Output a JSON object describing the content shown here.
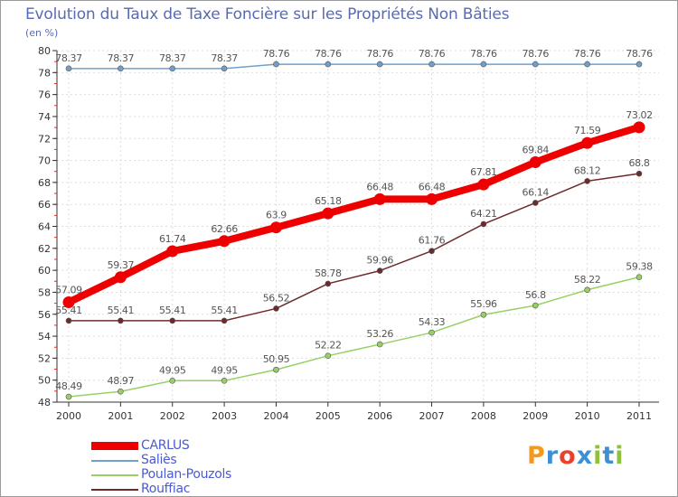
{
  "chart_data": {
    "type": "line",
    "title": "Evolution du Taux de Taxe Foncière sur les Propriétés Non Bâties",
    "ylabel": "(en %)",
    "xlabel": "",
    "x": [
      "2000",
      "2001",
      "2002",
      "2003",
      "2004",
      "2005",
      "2006",
      "2007",
      "2008",
      "2009",
      "2010",
      "2011"
    ],
    "ylim": [
      48,
      80
    ],
    "yticks": [
      48,
      50,
      52,
      54,
      56,
      58,
      60,
      62,
      64,
      66,
      68,
      70,
      72,
      74,
      76,
      78,
      80
    ],
    "grid": true,
    "legend_position": "bottom-left",
    "series": [
      {
        "name": "CARLUS",
        "color": "#ee0000",
        "highlight": true,
        "values": [
          57.09,
          59.37,
          61.74,
          62.66,
          63.9,
          65.18,
          66.48,
          66.48,
          67.81,
          69.84,
          71.59,
          73.02
        ],
        "labels": [
          "57.09",
          "59.37",
          "61.74",
          "62.66",
          "63.9",
          "65.18",
          "66.48",
          "66.48",
          "67.81",
          "69.84",
          "71.59",
          "73.02"
        ]
      },
      {
        "name": "Saliès",
        "color": "#6fa0cc",
        "highlight": false,
        "values": [
          78.37,
          78.37,
          78.37,
          78.37,
          78.76,
          78.76,
          78.76,
          78.76,
          78.76,
          78.76,
          78.76,
          78.76
        ],
        "labels": [
          "78.37",
          "78.37",
          "78.37",
          "78.37",
          "78.76",
          "78.76",
          "78.76",
          "78.76",
          "78.76",
          "78.76",
          "78.76",
          "78.76"
        ]
      },
      {
        "name": "Poulan-Pouzols",
        "color": "#99d066",
        "highlight": false,
        "values": [
          48.49,
          48.97,
          49.95,
          49.95,
          50.95,
          52.22,
          53.26,
          54.33,
          55.96,
          56.8,
          58.22,
          59.38
        ],
        "labels": [
          "48.49",
          "48.97",
          "49.95",
          "49.95",
          "50.95",
          "52.22",
          "53.26",
          "54.33",
          "55.96",
          "56.8",
          "58.22",
          "59.38"
        ]
      },
      {
        "name": "Rouffiac",
        "color": "#6e2a2a",
        "highlight": false,
        "values": [
          55.41,
          55.41,
          55.41,
          55.41,
          56.52,
          58.78,
          59.96,
          61.76,
          64.21,
          66.14,
          68.12,
          68.8
        ],
        "labels": [
          "55.41",
          "55.41",
          "55.41",
          "55.41",
          "56.52",
          "58.78",
          "59.96",
          "61.76",
          "64.21",
          "66.14",
          "68.12",
          "68.8"
        ]
      }
    ]
  },
  "brand": {
    "text": "Proxiti",
    "letter_colors": [
      "#f39a1e",
      "#3d8fd6",
      "#e8412e",
      "#3d8fd6",
      "#8fc23c",
      "#3d8fd6",
      "#8fc23c"
    ]
  }
}
